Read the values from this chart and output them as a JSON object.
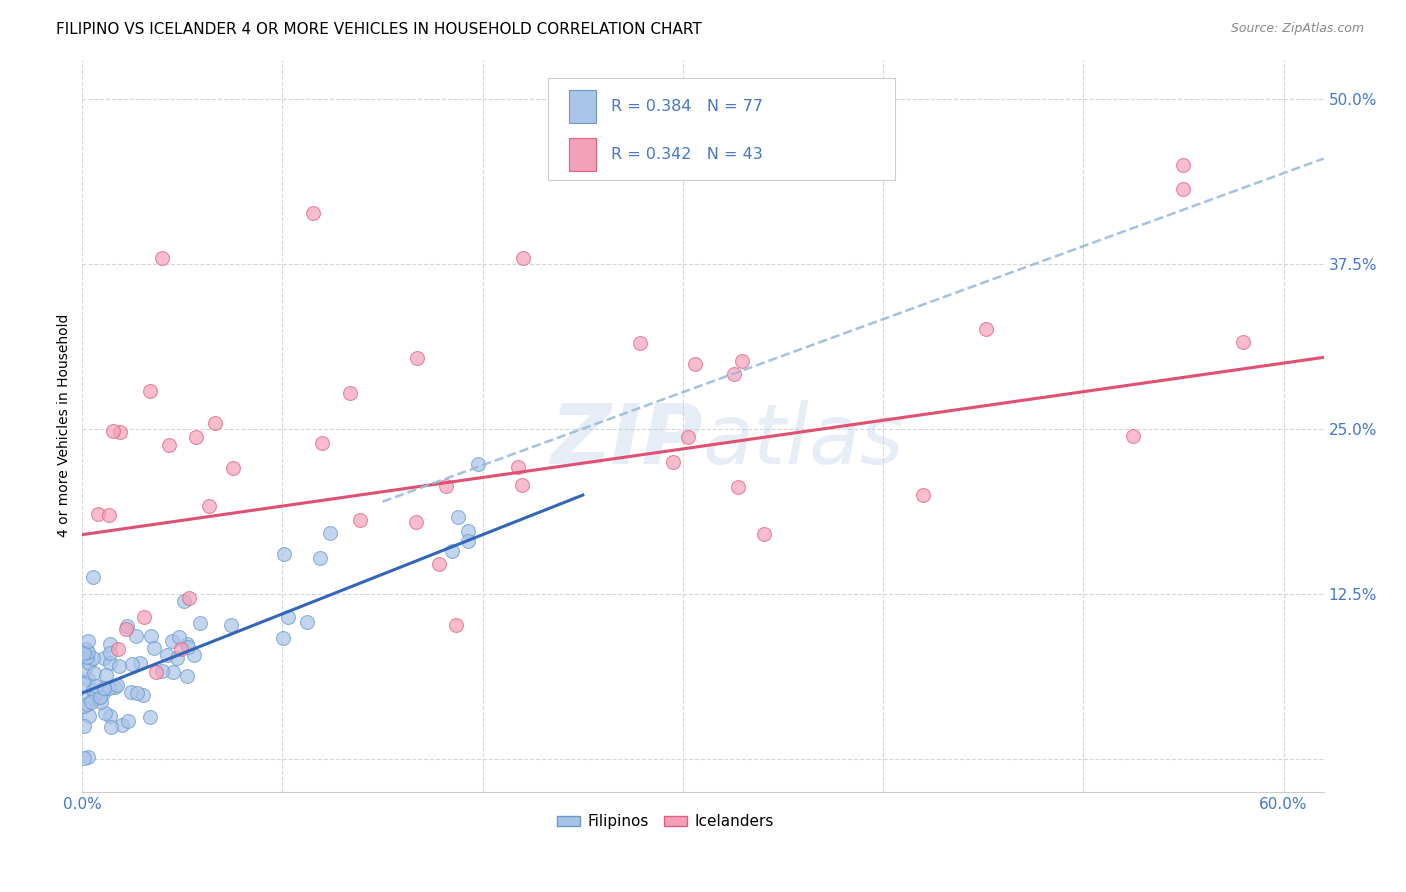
{
  "title": "FILIPINO VS ICELANDER 4 OR MORE VEHICLES IN HOUSEHOLD CORRELATION CHART",
  "source": "Source: ZipAtlas.com",
  "ylabel": "4 or more Vehicles in Household",
  "xlim": [
    0.0,
    0.62
  ],
  "ylim": [
    -0.025,
    0.53
  ],
  "xticks": [
    0.0,
    0.1,
    0.2,
    0.3,
    0.4,
    0.5,
    0.6
  ],
  "xticklabels": [
    "0.0%",
    "",
    "",
    "",
    "",
    "",
    "60.0%"
  ],
  "yticks": [
    0.0,
    0.125,
    0.25,
    0.375,
    0.5
  ],
  "yticklabels": [
    "",
    "12.5%",
    "25.0%",
    "37.5%",
    "50.0%"
  ],
  "filipino_color": "#aac4e8",
  "icelander_color": "#f4a0b8",
  "filipino_edge_color": "#6699cc",
  "icelander_edge_color": "#e06080",
  "filipino_trend_color": "#3366bb",
  "icelander_trend_color": "#e05070",
  "dashed_line_color": "#99bbdd",
  "background_color": "#ffffff",
  "grid_color": "#cccccc",
  "R_filipino": 0.384,
  "N_filipino": 77,
  "R_icelander": 0.342,
  "N_icelander": 43,
  "legend_labels": [
    "Filipinos",
    "Icelanders"
  ],
  "watermark": "ZIPatlas",
  "title_fontsize": 11,
  "tick_label_color": "#4477cc",
  "legend_R_color": "#4477cc",
  "legend_N_color": "#4477cc"
}
